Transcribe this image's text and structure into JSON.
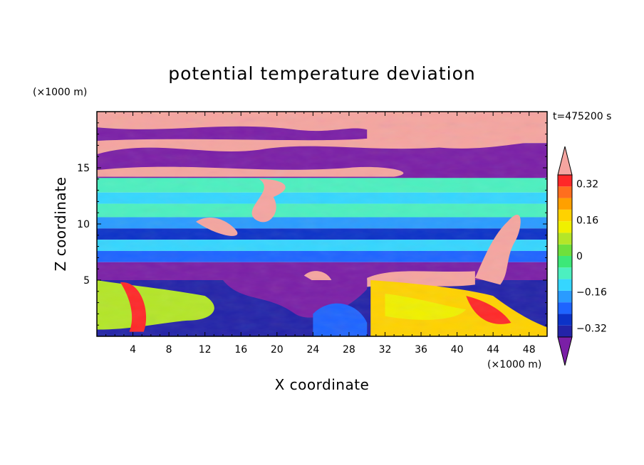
{
  "chart_data": {
    "type": "heatmap",
    "title": "potential temperature deviation",
    "xlabel": "X coordinate",
    "ylabel": "Z coordinate",
    "x_unit": "(×1000 m)",
    "y_unit": "(×1000 m)",
    "time_label": "t=475200 s",
    "xlim": [
      0,
      50
    ],
    "ylim": [
      0,
      20
    ],
    "x_ticks": [
      4,
      8,
      12,
      16,
      20,
      24,
      28,
      32,
      36,
      40,
      44,
      48
    ],
    "y_ticks": [
      5,
      10,
      15
    ],
    "colorbar": {
      "levels": [
        -0.4,
        -0.36,
        -0.32,
        -0.28,
        -0.24,
        -0.2,
        -0.16,
        -0.12,
        -0.08,
        -0.04,
        0,
        0.04,
        0.08,
        0.12,
        0.16,
        0.2,
        0.24,
        0.28,
        0.32,
        0.36,
        0.4
      ],
      "labeled_levels": [
        0.32,
        0.16,
        0,
        -0.16,
        -0.32
      ],
      "labels": [
        "0.32",
        "0.16",
        "0",
        "−0.16",
        "−0.32"
      ],
      "extend": "both",
      "colors": [
        "#7a1fa6",
        "#2323a8",
        "#0c32c8",
        "#1e64ff",
        "#2a9bff",
        "#35d6ff",
        "#4cf0c0",
        "#3ce878",
        "#6ee03c",
        "#b4e628",
        "#f0f000",
        "#ffd200",
        "#ffa000",
        "#ff6e1e",
        "#ff2828",
        "#f5a5a0"
      ]
    },
    "field_description_bands": [
      {
        "z": [
          17,
          20
        ],
        "value": "max"
      },
      {
        "z": [
          14,
          17
        ],
        "value": "min"
      },
      {
        "z": [
          10,
          14
        ],
        "value": 0.02
      },
      {
        "z": [
          8,
          10
        ],
        "value": -0.2
      },
      {
        "z": [
          5,
          8
        ],
        "value": -0.36
      },
      {
        "z": [
          0,
          5
        ],
        "value": "mixed"
      }
    ]
  }
}
